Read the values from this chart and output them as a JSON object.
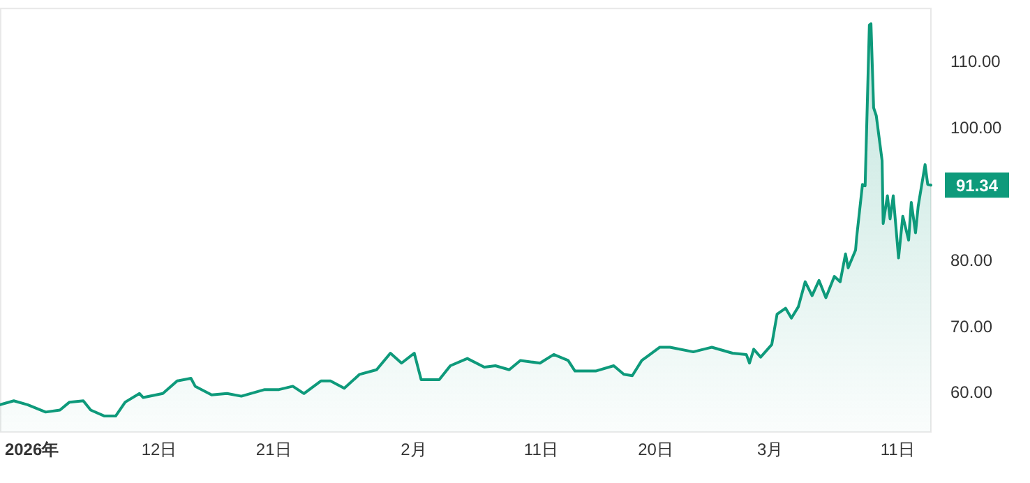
{
  "chart_data": {
    "type": "area",
    "color": "#0e9a7b",
    "x": [
      "2025-12-30T12:00",
      "2025-12-31T14:00",
      "2026-01-01T16:00",
      "2026-01-03T02:00",
      "2026-01-04T05:00",
      "2026-01-04T23:00",
      "2026-01-06T01:00",
      "2026-01-06T15:00",
      "2026-01-07T17:00",
      "2026-01-08T14:00",
      "2026-01-09T08:00",
      "2026-01-10T11:00",
      "2026-01-10T18:00",
      "2026-01-12T07:00",
      "2026-01-13T10:00",
      "2026-01-14T12:00",
      "2026-01-14T20:00",
      "2026-01-16T03:00",
      "2026-01-17T08:00",
      "2026-01-18T11:00",
      "2026-01-20T07:00",
      "2026-01-21T10:00",
      "2026-01-22T12:00",
      "2026-01-23T09:00",
      "2026-01-24T17:00",
      "2026-01-25T11:00",
      "2026-01-26T13:00",
      "2026-01-27T18:00",
      "2026-01-29T02:00",
      "2026-01-30T04:00",
      "2026-01-31T01:00",
      "2026-02-01T01:00",
      "2026-02-01T14:00",
      "2026-02-03T00:00",
      "2026-02-03T21:00",
      "2026-02-05T05:00",
      "2026-02-06T13:00",
      "2026-02-07T10:00",
      "2026-02-08T12:00",
      "2026-02-09T09:00",
      "2026-02-10T22:00",
      "2026-02-12T00:00",
      "2026-02-13T03:00",
      "2026-02-13T16:00",
      "2026-02-15T07:00",
      "2026-02-16T17:00",
      "2026-02-17T12:00",
      "2026-02-18T04:00",
      "2026-02-18T22:00",
      "2026-02-20T08:00",
      "2026-02-21T03:00",
      "2026-02-22T23:00",
      "2026-02-24T10:00",
      "2026-02-26T01:00",
      "2026-02-27T03:00",
      "2026-02-27T09:00",
      "2026-02-27T17:00",
      "2026-02-28T06:00",
      "2026-03-01T03:00",
      "2026-03-01T13:00",
      "2026-03-02T05:00",
      "2026-03-02T16:00",
      "2026-03-03T05:00",
      "2026-03-03T18:00",
      "2026-03-04T07:00",
      "2026-03-04T20:00",
      "2026-03-05T09:00",
      "2026-03-06T01:00",
      "2026-03-06T12:00",
      "2026-03-06T22:00",
      "2026-03-07T03:00",
      "2026-03-07T17:00",
      "2026-03-07T19:00",
      "2026-03-08T06:00",
      "2026-03-08T11:00",
      "2026-03-08T19:00",
      "2026-03-08T22:00",
      "2026-03-09T03:00",
      "2026-03-09T08:00",
      "2026-03-09T19:00",
      "2026-03-09T21:00",
      "2026-03-10T05:00",
      "2026-03-10T10:00",
      "2026-03-10T16:00",
      "2026-03-11T02:00",
      "2026-03-11T10:00",
      "2026-03-11T21:00",
      "2026-03-12T02:00",
      "2026-03-12T10:00",
      "2026-03-12T15:00",
      "2026-03-13T04:00",
      "2026-03-13T09:00",
      "2026-03-13T15:00"
    ],
    "values": [
      58.1,
      58.7,
      58.1,
      57,
      57.3,
      58.5,
      58.7,
      57.3,
      56.4,
      56.4,
      58.5,
      59.8,
      59.2,
      59.8,
      61.7,
      62.1,
      60.9,
      59.6,
      59.8,
      59.4,
      60.4,
      60.4,
      60.9,
      59.8,
      61.7,
      61.7,
      60.6,
      62.7,
      63.4,
      65.9,
      64.4,
      65.9,
      61.9,
      61.9,
      64,
      65.1,
      63.8,
      64,
      63.4,
      64.8,
      64.4,
      65.7,
      64.8,
      63.2,
      63.2,
      64,
      62.7,
      62.5,
      64.8,
      66.8,
      66.8,
      66.1,
      66.8,
      65.9,
      65.7,
      64.4,
      66.5,
      65.3,
      67.2,
      71.8,
      72.7,
      71.2,
      72.9,
      76.7,
      74.6,
      76.9,
      74.3,
      77.5,
      76.7,
      80.9,
      78.8,
      81.5,
      83.4,
      91.4,
      91.2,
      115.5,
      115.7,
      103,
      101.8,
      95,
      85.5,
      89.7,
      86.2,
      89.7,
      80.3,
      86.6,
      83,
      88.7,
      84.1,
      88.1,
      94.4,
      91.4,
      91.3
    ],
    "xlim": [
      "2025-12-30T12:00",
      "2026-03-13T15:00"
    ],
    "ylim": [
      54,
      118
    ],
    "xticks": [
      {
        "value": "2026-01-02",
        "label": "2026年"
      },
      {
        "value": "2026-01-12",
        "label": "12日"
      },
      {
        "value": "2026-01-21",
        "label": "21日"
      },
      {
        "value": "2026-02-01",
        "label": "2月"
      },
      {
        "value": "2026-02-11",
        "label": "11日"
      },
      {
        "value": "2026-02-20",
        "label": "20日"
      },
      {
        "value": "2026-03-01",
        "label": "3月"
      },
      {
        "value": "2026-03-11",
        "label": "11日"
      }
    ],
    "yticks": [
      {
        "value": 60,
        "label": "60.00"
      },
      {
        "value": 70,
        "label": "70.00"
      },
      {
        "value": 80,
        "label": "80.00"
      },
      {
        "value": 100,
        "label": "100.00"
      },
      {
        "value": 110,
        "label": "110.00"
      }
    ],
    "annotations": [
      {
        "text": "91.34",
        "x": "2026-03-13T15:00",
        "y": 91.3
      }
    ]
  }
}
